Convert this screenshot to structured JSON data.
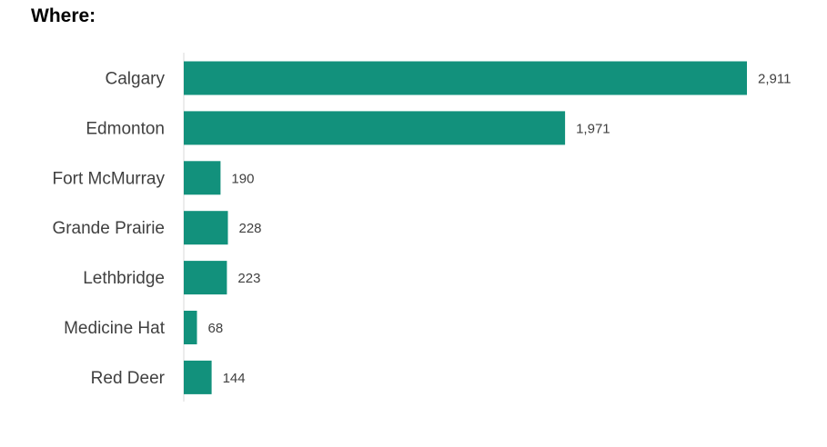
{
  "heading": "Where:",
  "chart_data": {
    "type": "bar",
    "orientation": "horizontal",
    "title": "",
    "xlabel": "",
    "ylabel": "",
    "categories": [
      "Calgary",
      "Edmonton",
      "Fort McMurray",
      "Grande Prairie",
      "Lethbridge",
      "Medicine Hat",
      "Red Deer"
    ],
    "values": [
      2911,
      1971,
      190,
      228,
      223,
      68,
      144
    ],
    "value_labels": [
      "2,911",
      "1,971",
      "190",
      "228",
      "223",
      "68",
      "144"
    ],
    "xlim": [
      0,
      2911
    ],
    "grid": false,
    "legend": "none",
    "bar_color": "#12917c",
    "axis_color": "#d9d9d9",
    "label_color": "#404040"
  }
}
